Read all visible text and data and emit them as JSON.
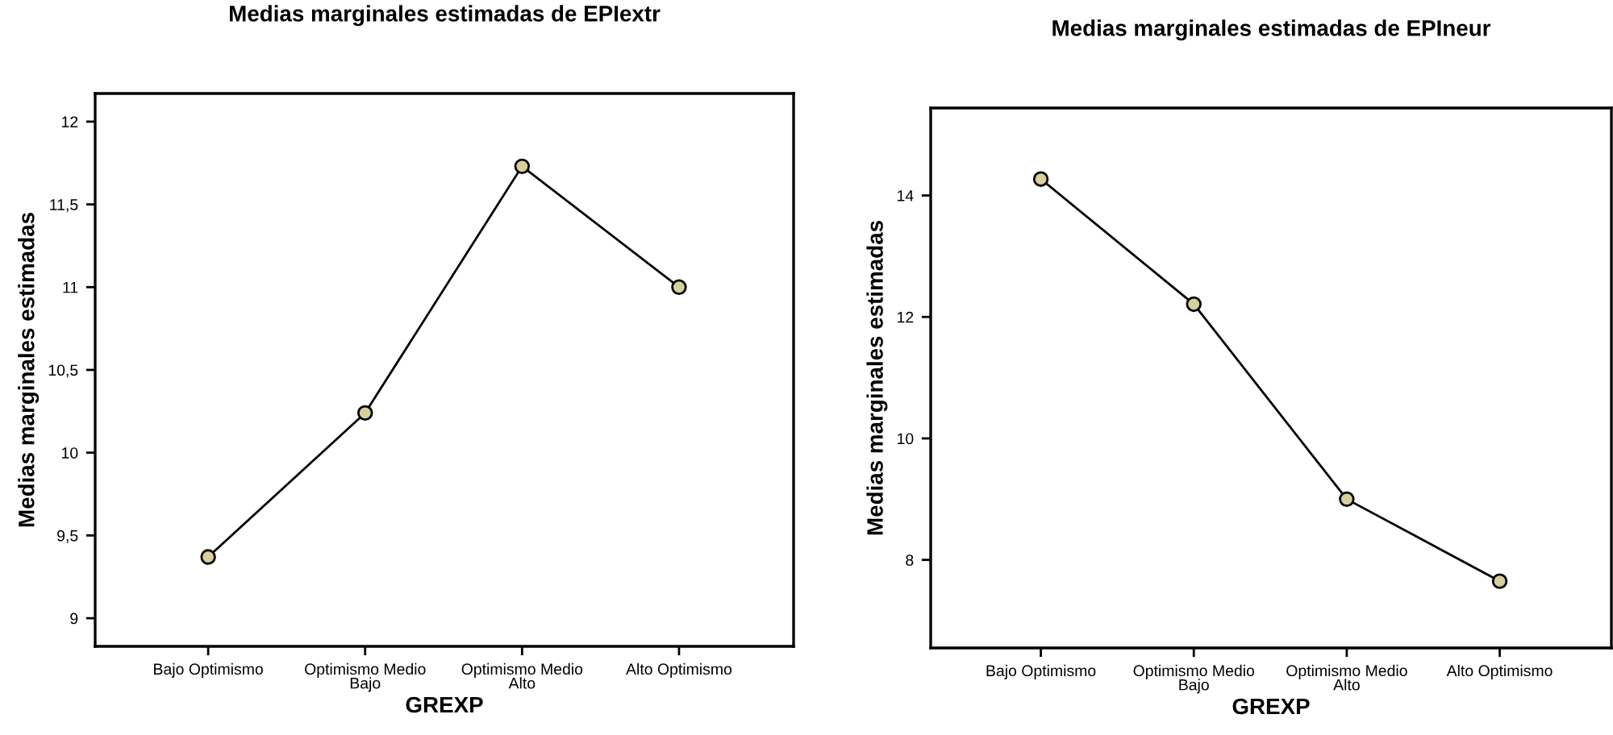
{
  "chart_data": [
    {
      "type": "line",
      "title": "Medias marginales estimadas de EPIextr",
      "xlabel": "GREXP",
      "ylabel": "Medias marginales estimadas",
      "categories": [
        "Bajo Optimismo",
        "Optimismo Medio\nBajo",
        "Optimismo Medio\nAlto",
        "Alto Optimismo"
      ],
      "series": [
        {
          "color": "#000000",
          "values": [
            9.37,
            10.24,
            11.73,
            11.0
          ]
        }
      ],
      "ylim": [
        8.83,
        12.17
      ],
      "yticks": [
        9,
        {
          "value": 9.5,
          "label": "9,5"
        },
        10,
        {
          "value": 10.5,
          "label": "10,5"
        },
        11,
        {
          "value": 11.5,
          "label": "11,5"
        },
        12
      ],
      "grid": false,
      "legend": false,
      "marker": "circle",
      "line_style": "solid"
    },
    {
      "type": "line",
      "title": "Medias marginales estimadas de EPIneur",
      "xlabel": "GREXP",
      "ylabel": "Medias marginales estimadas",
      "categories": [
        "Bajo Optimismo",
        "Optimismo Medio\nBajo",
        "Optimismo Medio\nAlto",
        "Alto Optimismo"
      ],
      "series": [
        {
          "color": "#000000",
          "values": [
            14.27,
            12.21,
            9.0,
            7.65
          ]
        }
      ],
      "ylim": [
        6.55,
        15.44
      ],
      "yticks": [
        8,
        10,
        12,
        14
      ],
      "grid": false,
      "legend": false,
      "marker": "circle",
      "line_style": "solid"
    }
  ]
}
